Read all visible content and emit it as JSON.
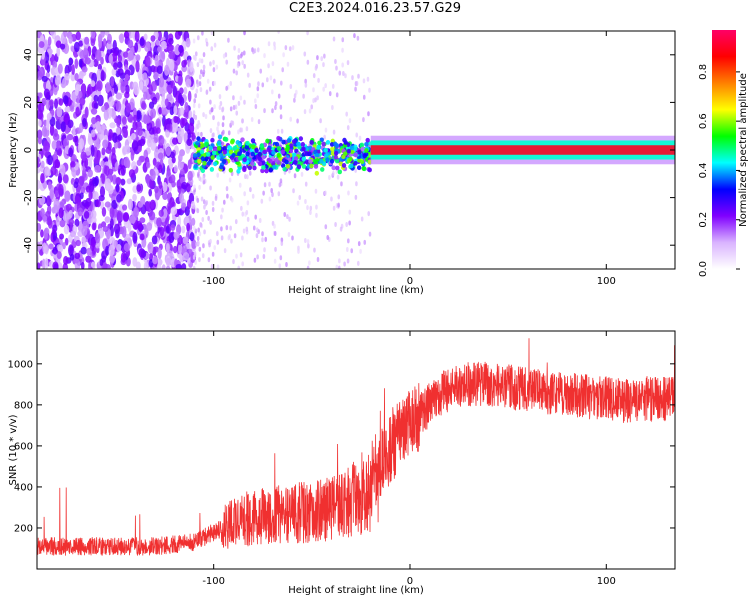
{
  "title": "C2E3.2024.016.23.57.G29",
  "chart_data": [
    {
      "type": "heatmap",
      "xlabel": "Height of straight line (km)",
      "ylabel": "Frequency (Hz)",
      "xlim": [
        -190,
        135
      ],
      "ylim": [
        -50,
        50
      ],
      "xticks": [
        -100,
        0,
        100
      ],
      "yticks": [
        -40,
        -20,
        0,
        20,
        40
      ],
      "grid": false,
      "description_regions": [
        {
          "x_range": [
            -190,
            -110
          ],
          "frequency_range": [
            -50,
            50
          ],
          "amplitude": 0.15,
          "pattern": "dense noise"
        },
        {
          "x_range": [
            -110,
            -20
          ],
          "frequency_range": [
            -8,
            8
          ],
          "amplitude": 0.35,
          "pattern": "band with scattered noise"
        },
        {
          "x_range": [
            -20,
            135
          ],
          "frequency_range": [
            -2,
            2
          ],
          "amplitude": 0.9,
          "pattern": "narrow strong line at 0 Hz"
        }
      ],
      "colorbar": {
        "label": "Normalized spectral amplitude",
        "range": [
          0,
          0.97
        ],
        "ticks": [
          0.0,
          0.2,
          0.4,
          0.6,
          0.8
        ],
        "colormap": [
          "#ffffff",
          "#d9b3ff",
          "#8000ff",
          "#0000ff",
          "#00ffff",
          "#00ff00",
          "#ffff00",
          "#ff8000",
          "#ff0000",
          "#ff0066"
        ]
      }
    },
    {
      "type": "line",
      "xlabel": "Height of straight line (km)",
      "ylabel": "SNR (10 * v/v)",
      "xlim": [
        -190,
        135
      ],
      "ylim": [
        0,
        1160
      ],
      "xticks": [
        -100,
        0,
        100
      ],
      "yticks": [
        200,
        400,
        600,
        800,
        1000
      ],
      "grid": false,
      "color": "#f03030",
      "series": [
        {
          "x": [
            -190,
            -170,
            -150,
            -130,
            -110,
            -100,
            -90,
            -80,
            -70,
            -60,
            -50,
            -40,
            -30,
            -20,
            -15,
            -10,
            -5,
            0,
            5,
            10,
            15,
            20,
            30,
            40,
            50,
            60,
            70,
            80,
            90,
            100,
            110,
            120,
            135
          ],
          "values": [
            110,
            110,
            110,
            110,
            130,
            180,
            230,
            250,
            260,
            270,
            280,
            300,
            330,
            400,
            500,
            600,
            640,
            700,
            760,
            800,
            850,
            880,
            900,
            900,
            890,
            870,
            860,
            850,
            840,
            830,
            820,
            830,
            830
          ]
        }
      ]
    }
  ]
}
